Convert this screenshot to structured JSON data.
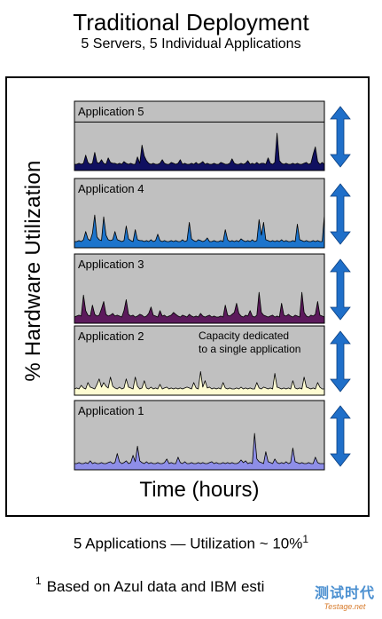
{
  "title": "Traditional Deployment",
  "subtitle": "5 Servers, 5 Individual Applications",
  "footer": {
    "text": "5 Applications — Utilization ~ 10%",
    "sup": "1"
  },
  "note": {
    "sup": "1",
    "text": "Based on Azul data and IBM esti"
  },
  "watermark": {
    "cn": "测试时代",
    "en": "Testage.net"
  },
  "colors": {
    "panel_bg": "#c0c0c0",
    "arrow": "#1f6fc9"
  },
  "chart_data": {
    "type": "area",
    "ylabel": "% Hardware Utilization",
    "xlabel": "Time (hours)",
    "panels": [
      {
        "name": "Application 5",
        "fill": "#101060",
        "capacity_line": 0.7,
        "values": [
          1,
          1,
          2,
          1,
          2,
          11,
          3,
          1,
          2,
          14,
          3,
          2,
          6,
          2,
          1,
          8,
          3,
          2,
          2,
          1,
          2,
          1,
          4,
          2,
          1,
          2,
          1,
          1,
          9,
          2,
          22,
          10,
          5,
          2,
          1,
          2,
          1,
          1,
          2,
          6,
          2,
          1,
          1,
          3,
          2,
          1,
          2,
          6,
          1,
          2,
          1,
          1,
          2,
          1,
          3,
          1,
          2,
          4,
          1,
          2,
          1,
          1,
          2,
          1,
          1,
          3,
          2,
          1,
          1,
          2,
          7,
          2,
          1,
          1,
          2,
          1,
          2,
          5,
          1,
          2,
          1,
          3,
          1,
          2,
          2,
          1,
          8,
          2,
          1,
          3,
          35,
          5,
          2,
          1,
          2,
          1,
          1,
          2,
          1,
          2,
          1,
          1,
          2,
          3,
          1,
          2,
          12,
          20,
          4,
          1,
          3,
          1
        ]
      },
      {
        "name": "Application 4",
        "fill": "#1c74cc",
        "values": [
          1,
          1,
          2,
          1,
          3,
          12,
          4,
          2,
          10,
          30,
          6,
          3,
          2,
          28,
          8,
          3,
          2,
          3,
          12,
          3,
          2,
          1,
          2,
          18,
          4,
          2,
          1,
          14,
          3,
          2,
          2,
          1,
          2,
          1,
          3,
          1,
          2,
          9,
          2,
          1,
          2,
          1,
          1,
          2,
          1,
          2,
          1,
          1,
          3,
          1,
          2,
          22,
          4,
          2,
          1,
          3,
          2,
          1,
          2,
          5,
          1,
          1,
          2,
          1,
          1,
          2,
          1,
          14,
          3,
          1,
          2,
          1,
          2,
          1,
          4,
          2,
          1,
          2,
          1,
          3,
          1,
          2,
          25,
          8,
          22,
          3,
          2,
          1,
          2,
          1,
          2,
          1,
          3,
          1,
          2,
          1,
          1,
          2,
          1,
          20,
          3,
          2,
          1,
          2,
          1,
          1,
          2,
          1,
          2,
          1,
          1,
          30
        ]
      },
      {
        "name": "Application 3",
        "fill": "#5c1a5c",
        "values": [
          1,
          2,
          3,
          2,
          25,
          8,
          3,
          2,
          14,
          4,
          2,
          3,
          10,
          18,
          4,
          2,
          3,
          5,
          2,
          3,
          2,
          1,
          8,
          20,
          4,
          2,
          3,
          1,
          2,
          4,
          3,
          1,
          2,
          5,
          12,
          3,
          2,
          1,
          8,
          2,
          3,
          1,
          2,
          3,
          6,
          4,
          2,
          1,
          3,
          2,
          1,
          4,
          2,
          1,
          2,
          1,
          5,
          2,
          1,
          2,
          3,
          1,
          2,
          1,
          1,
          2,
          1,
          14,
          3,
          2,
          4,
          6,
          16,
          5,
          2,
          1,
          3,
          2,
          8,
          2,
          1,
          3,
          28,
          6,
          3,
          2,
          1,
          2,
          3,
          1,
          2,
          1,
          16,
          3,
          2,
          4,
          2,
          1,
          3,
          2,
          1,
          28,
          6,
          2,
          1,
          3,
          2,
          4,
          18,
          3,
          2,
          1
        ]
      },
      {
        "name": "Application 2",
        "fill": "#fefcd2",
        "annotation": "Capacity dedicated to a single application",
        "values": [
          1,
          2,
          1,
          5,
          2,
          1,
          8,
          3,
          2,
          1,
          6,
          12,
          3,
          8,
          4,
          2,
          14,
          4,
          2,
          1,
          3,
          1,
          2,
          12,
          3,
          2,
          1,
          14,
          4,
          1,
          2,
          10,
          2,
          1,
          3,
          1,
          2,
          1,
          6,
          1,
          2,
          3,
          1,
          2,
          1,
          2,
          1,
          2,
          1,
          2,
          3,
          2,
          1,
          8,
          2,
          1,
          20,
          3,
          10,
          2,
          3,
          1,
          2,
          1,
          2,
          1,
          8,
          2,
          1,
          2,
          1,
          1,
          2,
          1,
          3,
          1,
          2,
          1,
          2,
          1,
          1,
          8,
          2,
          1,
          3,
          2,
          1,
          2,
          1,
          18,
          3,
          2,
          1,
          2,
          1,
          2,
          1,
          10,
          2,
          1,
          2,
          1,
          14,
          3,
          2,
          1,
          2,
          1,
          8,
          3,
          1,
          1
        ]
      },
      {
        "name": "Application 1",
        "fill": "#8e8ee8",
        "values": [
          1,
          1,
          2,
          1,
          1,
          2,
          1,
          4,
          1,
          2,
          1,
          1,
          2,
          1,
          1,
          2,
          3,
          1,
          2,
          12,
          3,
          1,
          2,
          4,
          1,
          2,
          10,
          3,
          20,
          4,
          2,
          1,
          3,
          1,
          2,
          1,
          1,
          2,
          1,
          1,
          2,
          6,
          1,
          2,
          1,
          1,
          8,
          2,
          1,
          3,
          1,
          1,
          2,
          1,
          1,
          2,
          1,
          2,
          1,
          1,
          2,
          3,
          1,
          2,
          1,
          1,
          2,
          1,
          2,
          1,
          2,
          1,
          1,
          2,
          5,
          2,
          4,
          1,
          2,
          1,
          34,
          6,
          3,
          2,
          1,
          14,
          3,
          2,
          1,
          6,
          2,
          1,
          2,
          1,
          3,
          1,
          2,
          18,
          3,
          2,
          1,
          2,
          1,
          1,
          2,
          1,
          1,
          8,
          2,
          1,
          1,
          1
        ]
      }
    ]
  }
}
